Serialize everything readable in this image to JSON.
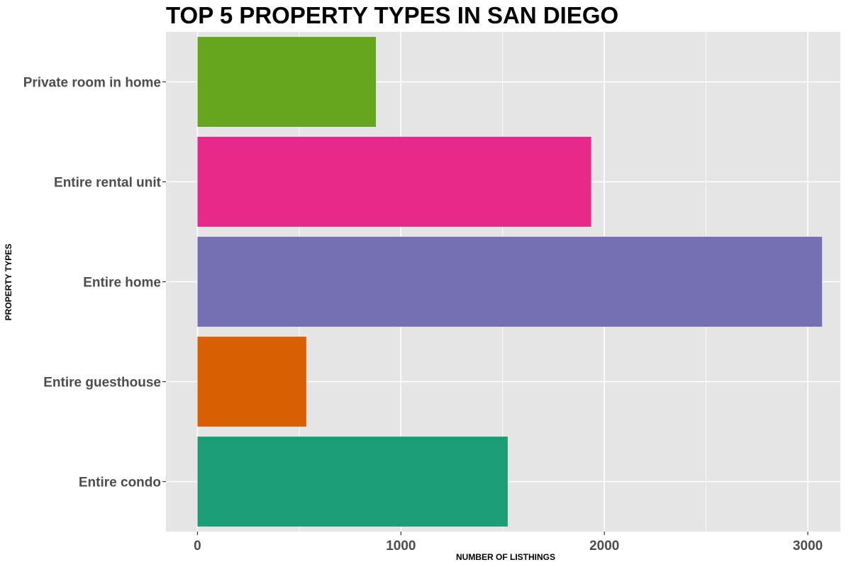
{
  "chart_data": {
    "type": "bar",
    "orientation": "horizontal",
    "title": "TOP 5 PROPERTY TYPES IN SAN DIEGO",
    "xlabel": "NUMBER OF LISTHINGS",
    "ylabel": "PROPERTY TYPES",
    "categories": [
      "Entire condo",
      "Entire guesthouse",
      "Entire home",
      "Entire rental unit",
      "Private room in home"
    ],
    "values": [
      1525,
      535,
      3070,
      1935,
      877
    ],
    "colors": [
      "#1b9e77",
      "#d95f02",
      "#7570b3",
      "#e7298a",
      "#66a61e"
    ],
    "xlim": [
      -155,
      3160
    ],
    "x_ticks": [
      0,
      1000,
      2000,
      3000
    ],
    "x_tick_labels": [
      "0",
      "1000",
      "2000",
      "3000"
    ],
    "grid": true,
    "legend": "none",
    "panel_background": "#e5e5e5",
    "grid_color": "#ffffff"
  }
}
